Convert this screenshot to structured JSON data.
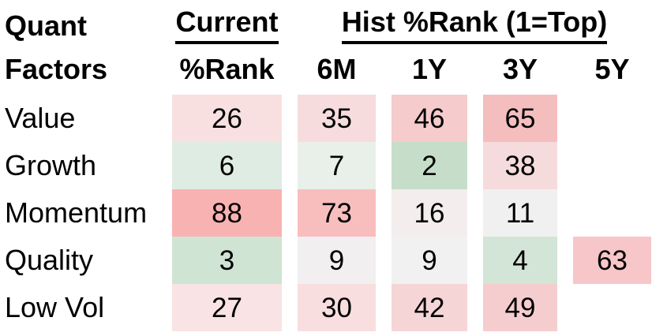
{
  "table": {
    "title_line1": "Quant",
    "title_line2": "Factors",
    "header_groups": {
      "current": "Current",
      "hist": "Hist %Rank (1=Top)"
    },
    "column_headers": {
      "current": "%Rank",
      "h6m": "6M",
      "h1y": "1Y",
      "h3y": "3Y",
      "h5y": "5Y"
    },
    "rows": [
      {
        "label": "Value",
        "cells": [
          {
            "value": "26",
            "bg": "#f8e0e1"
          },
          {
            "value": "35",
            "bg": "#f7dcdd"
          },
          {
            "value": "46",
            "bg": "#f5cbcc"
          },
          {
            "value": "65",
            "bg": "#f4bebf"
          },
          {
            "value": "",
            "bg": ""
          }
        ]
      },
      {
        "label": "Growth",
        "cells": [
          {
            "value": "6",
            "bg": "#dfece3"
          },
          {
            "value": "7",
            "bg": "#e8f0e9"
          },
          {
            "value": "2",
            "bg": "#c6dec9"
          },
          {
            "value": "38",
            "bg": "#f6dbdc"
          },
          {
            "value": "",
            "bg": ""
          }
        ]
      },
      {
        "label": "Momentum",
        "cells": [
          {
            "value": "88",
            "bg": "#f9b2b2"
          },
          {
            "value": "73",
            "bg": "#f8bebe"
          },
          {
            "value": "16",
            "bg": "#f3edee"
          },
          {
            "value": "11",
            "bg": "#f1f0f1"
          },
          {
            "value": "",
            "bg": ""
          }
        ]
      },
      {
        "label": "Quality",
        "cells": [
          {
            "value": "3",
            "bg": "#d0e4d4"
          },
          {
            "value": "9",
            "bg": "#f1eff0"
          },
          {
            "value": "9",
            "bg": "#f2f1f2"
          },
          {
            "value": "4",
            "bg": "#d3e5d6"
          },
          {
            "value": "63",
            "bg": "#f7c6c8"
          }
        ]
      },
      {
        "label": "Low Vol",
        "cells": [
          {
            "value": "27",
            "bg": "#f9e3e4"
          },
          {
            "value": "30",
            "bg": "#f8dedf"
          },
          {
            "value": "42",
            "bg": "#f6d5d6"
          },
          {
            "value": "49",
            "bg": "#f5cdcf"
          },
          {
            "value": "",
            "bg": ""
          }
        ]
      }
    ]
  },
  "colors": {
    "text": "#000000",
    "strong_red": "#f9b2b2",
    "strong_green": "#c6dec9",
    "neutral": "#f1f0f1",
    "background": "#ffffff"
  },
  "chart_data": {
    "type": "heatmap",
    "title": "Quant Factors %Rank",
    "scale_note": "1=Top",
    "row_labels": [
      "Value",
      "Growth",
      "Momentum",
      "Quality",
      "Low Vol"
    ],
    "columns": [
      "Current %Rank",
      "6M",
      "1Y",
      "3Y",
      "5Y"
    ],
    "column_groups": [
      {
        "label": "Current",
        "columns": [
          "%Rank"
        ]
      },
      {
        "label": "Hist %Rank (1=Top)",
        "columns": [
          "6M",
          "1Y",
          "3Y",
          "5Y"
        ]
      }
    ],
    "values": [
      [
        26,
        35,
        46,
        65,
        null
      ],
      [
        6,
        7,
        2,
        38,
        null
      ],
      [
        88,
        73,
        16,
        11,
        null
      ],
      [
        3,
        9,
        9,
        4,
        63
      ],
      [
        27,
        30,
        42,
        49,
        null
      ]
    ],
    "color_scale": {
      "low_rank": "green",
      "mid": "near-white gray",
      "high_rank": "red"
    },
    "legend_position": "none",
    "grid": false
  }
}
